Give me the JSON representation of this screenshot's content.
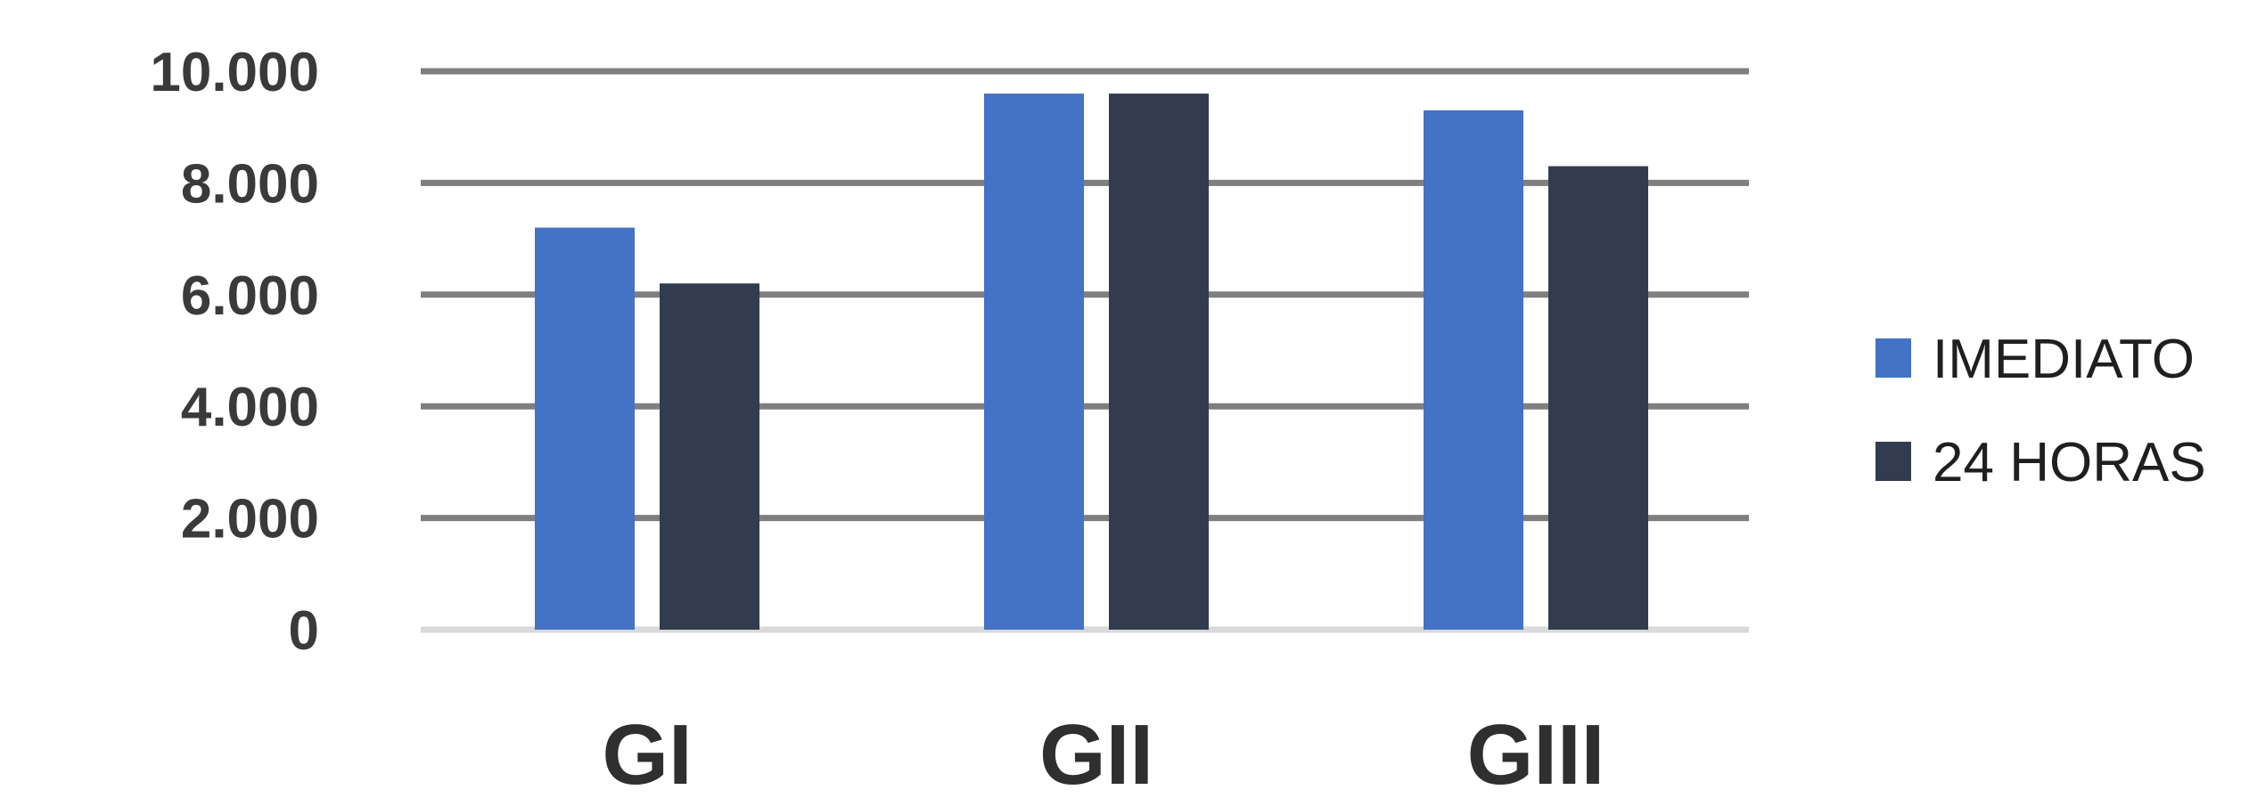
{
  "chart_data": {
    "type": "bar",
    "categories": [
      "GI",
      "GII",
      "GIII"
    ],
    "series": [
      {
        "name": "IMEDIATO",
        "color": "#4472C4",
        "values": [
          7200,
          9600,
          9300
        ]
      },
      {
        "name": "24 HORAS",
        "color": "#323C4E",
        "values": [
          6200,
          9600,
          8300
        ]
      }
    ],
    "ylim": [
      0,
      10000
    ],
    "yticks": [
      {
        "value": 0,
        "label": "0"
      },
      {
        "value": 2000,
        "label": "2.000"
      },
      {
        "value": 4000,
        "label": "4.000"
      },
      {
        "value": 6000,
        "label": "6.000"
      },
      {
        "value": 8000,
        "label": "8.000"
      },
      {
        "value": 10000,
        "label": "10.000"
      }
    ],
    "grid": true,
    "gridline_color": "#7f7f7f",
    "axis_color": "#d9d9d9",
    "legend_position": "right",
    "title": "",
    "xlabel": "",
    "ylabel": ""
  }
}
